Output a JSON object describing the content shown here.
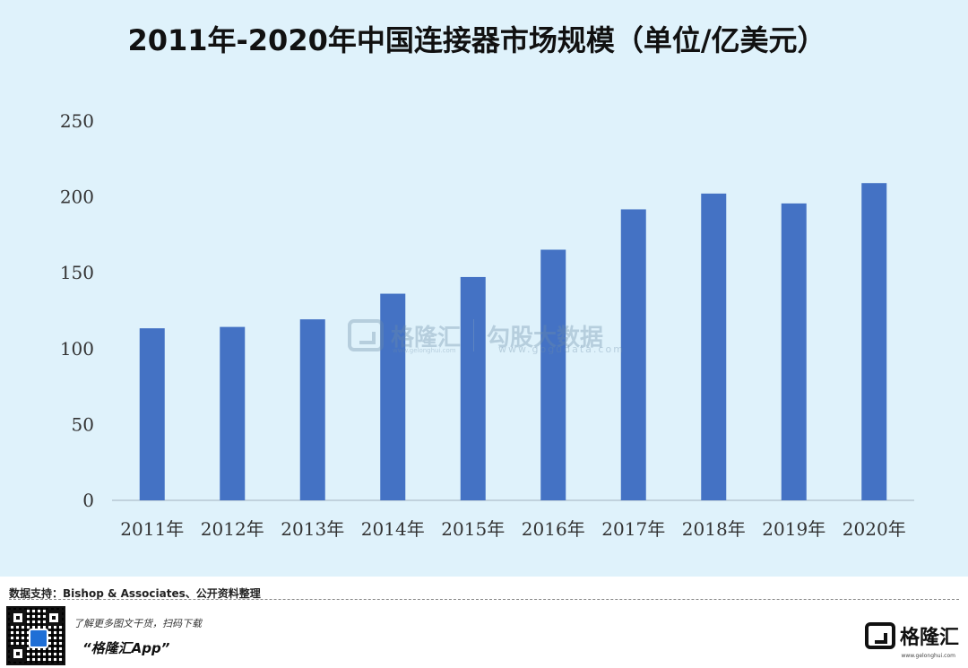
{
  "chart_data": {
    "type": "bar",
    "title": "2011年-2020年中国连接器市场规模（单位/亿美元）",
    "categories": [
      "2011年",
      "2012年",
      "2013年",
      "2014年",
      "2015年",
      "2016年",
      "2017年",
      "2018年",
      "2019年",
      "2020年"
    ],
    "values": [
      113.4,
      114.3,
      119.3,
      136.2,
      147.2,
      165.2,
      191.8,
      202.2,
      195.7,
      209.1
    ],
    "ylim": [
      0,
      250
    ],
    "yticks": [
      0,
      50,
      100,
      150,
      200,
      250
    ],
    "xlabel": "",
    "ylabel": "",
    "grid": false,
    "colors": {
      "bar": "#4472c4",
      "background": "#dff2fb",
      "axis": "#b7c7d3",
      "title": "#111111",
      "tick_text": "#333333"
    }
  },
  "watermark": {
    "brand": "格隆汇",
    "brand_url": "www.gelonghui.com",
    "partner": "勾股大数据",
    "partner_url": "www.gogudata.com"
  },
  "footer": {
    "source": "数据支持：Bishop & Associates、公开资料整理",
    "promo_line1": "了解更多图文干货，扫码下载",
    "promo_line2": "“格隆汇App”",
    "brand": "格隆汇",
    "brand_url": "www.gelonghui.com",
    "qr_icon": "qr-code-icon",
    "logo_icon": "gelonghui-logo-icon"
  }
}
